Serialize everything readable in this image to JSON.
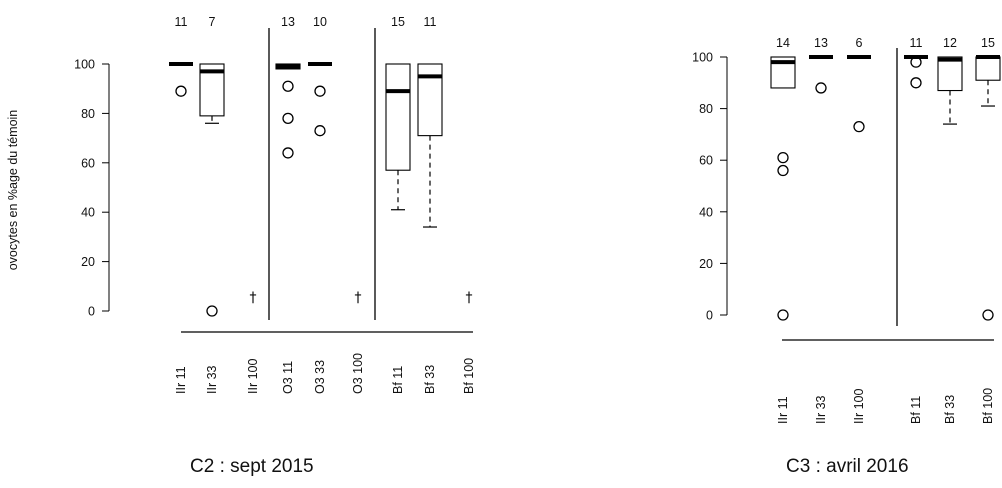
{
  "chart_data": [
    {
      "type": "box",
      "title": "C2 : sept 2015",
      "ylabel": "ovocytes en %age du témoin",
      "ylim": [
        0,
        100
      ],
      "yticks": [
        0,
        20,
        40,
        60,
        80,
        100
      ],
      "grid": false,
      "groups": [
        {
          "categories": [
            "IIr 11",
            "IIr 33",
            "IIr 100"
          ],
          "boxes": [
            {
              "label": "IIr 11",
              "n": "11",
              "q1": 100,
              "median": 100,
              "q3": 100,
              "whisker_low": 100,
              "whisker_high": 100,
              "outliers": [
                89
              ]
            },
            {
              "label": "IIr 33",
              "n": "7",
              "q1": 79,
              "median": 97,
              "q3": 100,
              "whisker_low": 76,
              "whisker_high": 100,
              "outliers": [
                0
              ]
            },
            {
              "label": "IIr 100",
              "dagger": "†"
            }
          ]
        },
        {
          "categories": [
            "O3 11",
            "O3 33",
            "O3 100"
          ],
          "boxes": [
            {
              "label": "O3 11",
              "n": "13",
              "q1": 98,
              "median": 99,
              "q3": 100,
              "whisker_low": 98,
              "whisker_high": 100,
              "outliers": [
                91,
                78,
                64
              ]
            },
            {
              "label": "O3 33",
              "n": "10",
              "q1": 100,
              "median": 100,
              "q3": 100,
              "whisker_low": 100,
              "whisker_high": 100,
              "outliers": [
                89,
                73
              ]
            },
            {
              "label": "O3 100",
              "dagger": "†"
            }
          ]
        },
        {
          "categories": [
            "Bf 11",
            "Bf 33",
            "Bf 100"
          ],
          "boxes": [
            {
              "label": "Bf 11",
              "n": "15",
              "q1": 57,
              "median": 89,
              "q3": 100,
              "whisker_low": 41,
              "whisker_high": 100,
              "outliers": []
            },
            {
              "label": "Bf 33",
              "n": "11",
              "q1": 71,
              "median": 95,
              "q3": 100,
              "whisker_low": 34,
              "whisker_high": 100,
              "outliers": []
            },
            {
              "label": "Bf 100",
              "dagger": "†"
            }
          ]
        }
      ]
    },
    {
      "type": "box",
      "title": "C3 : avril 2016",
      "ylabel": "",
      "ylim": [
        0,
        100
      ],
      "yticks": [
        0,
        20,
        40,
        60,
        80,
        100
      ],
      "grid": false,
      "groups": [
        {
          "categories": [
            "IIr 11",
            "IIr 33",
            "IIr 100"
          ],
          "boxes": [
            {
              "label": "IIr 11",
              "n": "14",
              "q1": 88,
              "median": 98,
              "q3": 100,
              "whisker_low": 88,
              "whisker_high": 100,
              "outliers": [
                61,
                56,
                0
              ]
            },
            {
              "label": "IIr 33",
              "n": "13",
              "q1": 100,
              "median": 100,
              "q3": 100,
              "whisker_low": 100,
              "whisker_high": 100,
              "outliers": [
                88
              ]
            },
            {
              "label": "IIr 100",
              "n": "6",
              "q1": 100,
              "median": 100,
              "q3": 100,
              "whisker_low": 100,
              "whisker_high": 100,
              "outliers": [
                73
              ]
            }
          ]
        },
        {
          "categories": [
            "Bf 11",
            "Bf 33",
            "Bf 100"
          ],
          "boxes": [
            {
              "label": "Bf 11",
              "n": "11",
              "q1": 100,
              "median": 100,
              "q3": 100,
              "whisker_low": 100,
              "whisker_high": 100,
              "outliers": [
                98,
                90
              ]
            },
            {
              "label": "Bf 33",
              "n": "12",
              "q1": 87,
              "median": 99,
              "q3": 100,
              "whisker_low": 74,
              "whisker_high": 100,
              "outliers": []
            },
            {
              "label": "Bf 100",
              "n": "15",
              "q1": 91,
              "median": 100,
              "q3": 100,
              "whisker_low": 81,
              "whisker_high": 100,
              "outliers": [
                0
              ]
            }
          ]
        }
      ]
    }
  ]
}
